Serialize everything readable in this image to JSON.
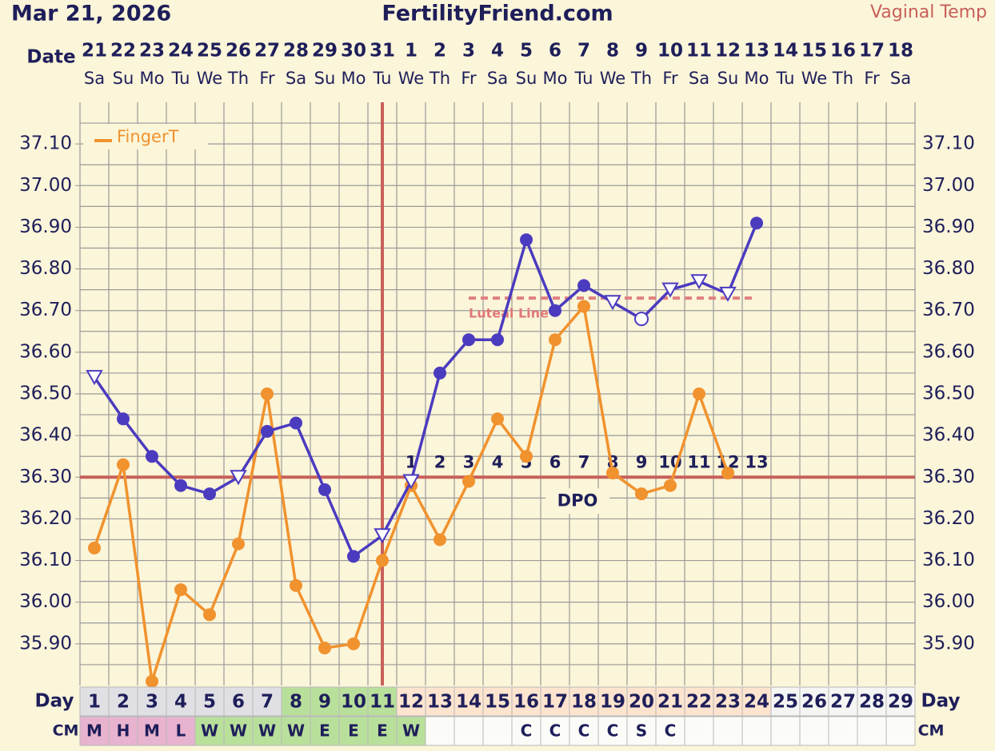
{
  "chart_data": {
    "type": "line",
    "date": "Mar 21, 2026",
    "title": "FertilityFriend.com",
    "date_row_label": "Date",
    "categories": [
      "21",
      "22",
      "23",
      "24",
      "25",
      "26",
      "27",
      "28",
      "29",
      "30",
      "31",
      "1",
      "2",
      "3",
      "4",
      "5",
      "6",
      "7",
      "8",
      "9",
      "10",
      "11",
      "12",
      "13",
      "14",
      "15",
      "16",
      "17",
      "18"
    ],
    "weekdays": [
      "Sa",
      "Su",
      "Mo",
      "Tu",
      "We",
      "Th",
      "Fr",
      "Sa",
      "Su",
      "Mo",
      "Tu",
      "We",
      "Th",
      "Fr",
      "Sa",
      "Su",
      "Mo",
      "Tu",
      "We",
      "Th",
      "Fr",
      "Sa",
      "Su",
      "Mo",
      "Tu",
      "We",
      "Th",
      "Fr",
      "Sa"
    ],
    "ylim": [
      35.8,
      37.2
    ],
    "yticks": [
      {
        "value": 35.9,
        "label": "35.90"
      },
      {
        "value": 36.0,
        "label": "36.00"
      },
      {
        "value": 36.1,
        "label": "36.10"
      },
      {
        "value": 36.2,
        "label": "36.20"
      },
      {
        "value": 36.3,
        "label": "36.30"
      },
      {
        "value": 36.4,
        "label": "36.40"
      },
      {
        "value": 36.5,
        "label": "36.50"
      },
      {
        "value": 36.6,
        "label": "36.60"
      },
      {
        "value": 36.7,
        "label": "36.70"
      },
      {
        "value": 36.8,
        "label": "36.80"
      },
      {
        "value": 36.9,
        "label": "36.90"
      },
      {
        "value": 37.0,
        "label": "37.00"
      },
      {
        "value": 37.1,
        "label": "37.10"
      }
    ],
    "grid": true,
    "grid_step": 0.05,
    "legend": "top-left",
    "series": [
      {
        "name": "Vaginal Temp",
        "color": "#4b3bbf",
        "values": [
          36.54,
          36.44,
          36.35,
          36.28,
          36.26,
          36.3,
          36.41,
          36.43,
          36.27,
          36.11,
          36.16,
          36.29,
          36.55,
          36.63,
          36.63,
          36.87,
          36.7,
          36.76,
          36.72,
          36.68,
          36.75,
          36.77,
          36.74,
          36.91,
          null,
          null,
          null,
          null,
          null
        ],
        "markers": [
          "triangle",
          "dot",
          "dot",
          "dot",
          "dot",
          "triangle",
          "dot",
          "dot",
          "dot",
          "dot",
          "triangle",
          "triangle",
          "dot",
          "dot",
          "dot",
          "dot",
          "dot",
          "dot",
          "triangle",
          "circle",
          "triangle",
          "triangle",
          "triangle",
          "dot",
          null,
          null,
          null,
          null,
          null
        ]
      },
      {
        "name": "FingerT",
        "color": "#f0922e",
        "values": [
          36.13,
          36.33,
          35.81,
          36.03,
          35.97,
          36.14,
          36.5,
          36.04,
          35.89,
          35.9,
          36.1,
          36.28,
          36.15,
          36.29,
          36.44,
          36.35,
          36.63,
          36.71,
          36.31,
          36.26,
          36.28,
          36.5,
          36.31,
          null,
          null,
          null,
          null,
          null,
          null
        ],
        "markers": [
          "dot",
          "dot",
          "dot",
          "dot",
          "dot",
          "dot",
          "dot",
          "dot",
          "dot",
          "dot",
          "dot",
          "dot",
          "dot",
          "dot",
          "dot",
          "dot",
          "dot",
          "dot",
          "dot",
          "dot",
          "dot",
          "dot",
          "dot",
          null,
          null,
          null,
          null,
          null,
          null
        ]
      }
    ],
    "coverline": 36.3,
    "ovulation_day": 11,
    "luteal_line": {
      "label": "Luteal Line",
      "value": 36.73,
      "from_day": 14,
      "to_day": 24
    },
    "dpo_label": "DPO",
    "dpo_start_day": 12,
    "dpo": [
      1,
      2,
      3,
      4,
      5,
      6,
      7,
      8,
      9,
      10,
      11,
      12,
      13
    ],
    "day_row_label": "Day",
    "cycle_days": [
      1,
      2,
      3,
      4,
      5,
      6,
      7,
      8,
      9,
      10,
      11,
      12,
      13,
      14,
      15,
      16,
      17,
      18,
      19,
      20,
      21,
      22,
      23,
      24,
      25,
      26,
      27,
      28,
      29
    ],
    "day_colors": [
      "#e0dfe4",
      "#e0dfe4",
      "#e0dfe4",
      "#e0dfe4",
      "#e0dfe4",
      "#e0dfe4",
      "#e0dfe4",
      "#b9e09b",
      "#b9e09b",
      "#b9e09b",
      "#b9e09b",
      "#fde4cf",
      "#fde4cf",
      "#fde4cf",
      "#fde4cf",
      "#fde4cf",
      "#fde4cf",
      "#fde4cf",
      "#fde4cf",
      "#fde4cf",
      "#fde4cf",
      "#fde4cf",
      "#fde4cf",
      "#fde4cf",
      "#f5f5f3",
      "#f5f5f3",
      "#f5f5f3",
      "#f5f5f3",
      "#f5f5f3"
    ],
    "cm_row_label": "CM",
    "cm": [
      "M",
      "H",
      "M",
      "L",
      "W",
      "W",
      "W",
      "W",
      "E",
      "E",
      "E",
      "W",
      null,
      null,
      null,
      "C",
      "C",
      "C",
      "C",
      "S",
      "C",
      null,
      null,
      null,
      null,
      null,
      null,
      null,
      null
    ],
    "cm_colors": [
      "#e8b3cf",
      "#e8b3cf",
      "#e8b3cf",
      "#e8b3cf",
      "#b9e09b",
      "#b9e09b",
      "#b9e09b",
      "#b9e09b",
      "#b9e09b",
      "#b9e09b",
      "#b9e09b",
      "#b9e09b",
      "#fbfbf8",
      "#fbfbf8",
      "#fbfbf8",
      "#fbfbf8",
      "#fbfbf8",
      "#fbfbf8",
      "#fbfbf8",
      "#fbfbf8",
      "#fbfbf8",
      "#fbfbf8",
      "#fbfbf8",
      "#fbfbf8",
      "#fbfbf8",
      "#fbfbf8",
      "#fbfbf8",
      "#fbfbf8",
      "#fbfbf8"
    ]
  }
}
